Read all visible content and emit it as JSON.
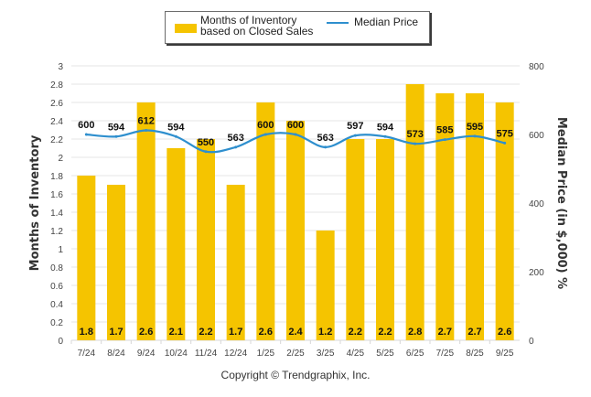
{
  "chart_data": {
    "type": "bar",
    "title": "",
    "categories": [
      "7/24",
      "8/24",
      "9/24",
      "10/24",
      "11/24",
      "12/24",
      "1/25",
      "2/25",
      "3/25",
      "4/25",
      "5/25",
      "6/25",
      "7/25",
      "8/25",
      "9/25"
    ],
    "series": [
      {
        "name": "Months of Inventory based on Closed Sales",
        "type": "bar",
        "axis": "left",
        "color": "#f5c400",
        "values": [
          1.8,
          1.7,
          2.6,
          2.1,
          2.2,
          1.7,
          2.6,
          2.4,
          1.2,
          2.2,
          2.2,
          2.8,
          2.7,
          2.7,
          2.6
        ],
        "labels": [
          "1.8",
          "1.7",
          "2.6",
          "2.1",
          "2.2",
          "1.7",
          "2.6",
          "2.4",
          "1.2",
          "2.2",
          "2.2",
          "2.8",
          "2.7",
          "2.7",
          "2.6"
        ]
      },
      {
        "name": "Median Price",
        "type": "line",
        "axis": "right",
        "color": "#2e8fce",
        "values": [
          600,
          594,
          612,
          594,
          550,
          563,
          600,
          600,
          563,
          597,
          594,
          573,
          585,
          595,
          575
        ],
        "labels": [
          "600",
          "594",
          "612",
          "594",
          "550",
          "563",
          "600",
          "600",
          "563",
          "597",
          "594",
          "573",
          "585",
          "595",
          "575"
        ]
      }
    ],
    "ylabel": "Months of Inventory",
    "y2label": "Median Price (in $,000) %",
    "ylim": [
      0,
      3
    ],
    "y2lim": [
      0,
      800
    ],
    "yticks": [
      "0",
      "0.2",
      "0.4",
      "0.6",
      "0.8",
      "1",
      "1.2",
      "1.4",
      "1.6",
      "1.8",
      "2",
      "2.2",
      "2.4",
      "2.6",
      "2.8",
      "3"
    ],
    "y2ticks": [
      "0",
      "200",
      "400",
      "600",
      "800"
    ],
    "grid": true,
    "legend": "top-center"
  },
  "legend": {
    "bar_label": "Months of Inventory based on Closed Sales",
    "line_label": "Median Price"
  },
  "footer": {
    "copyright": "Copyright © Trendgraphix, Inc."
  }
}
